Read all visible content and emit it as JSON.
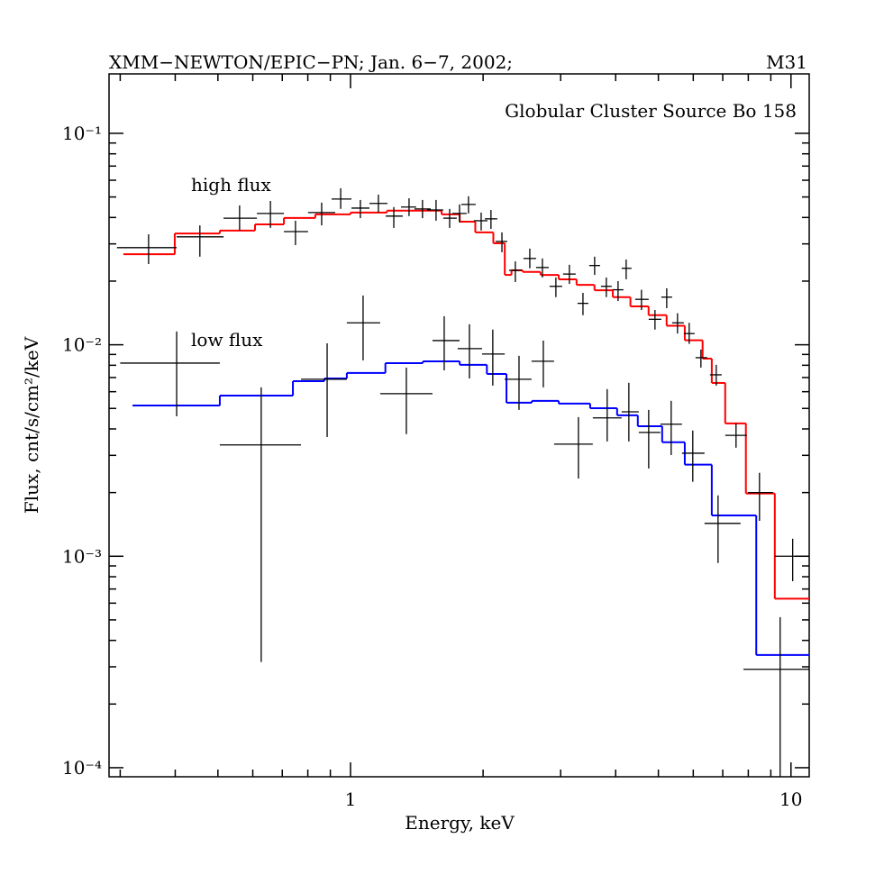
{
  "chart_data": {
    "type": "step",
    "title": "XMM−NEWTON/EPIC−PN; Jan. 6−7, 2002;",
    "title_right": "M31",
    "subtitle": "Globular Cluster Source Bo 158",
    "xlabel": "Energy, keV",
    "ylabel": "Flux, cnt/s/cm²/keV",
    "xlog": true,
    "ylog": true,
    "xlim": [
      0.283,
      11.0
    ],
    "ylim": [
      9.06e-05,
      0.191
    ],
    "xticks": [
      1,
      10
    ],
    "xminorticks": [
      0.3,
      0.4,
      0.5,
      0.6,
      0.7,
      0.8,
      0.9,
      2,
      3,
      4,
      5,
      6,
      7,
      8,
      9
    ],
    "yticks": [
      {
        "value": 0.0001,
        "label": "10⁻⁴"
      },
      {
        "value": 0.001,
        "label": "10⁻³"
      },
      {
        "value": 0.01,
        "label": "10⁻²"
      },
      {
        "value": 0.1,
        "label": "10⁻¹"
      }
    ],
    "yminorticks": [
      0.0002,
      0.0003,
      0.0004,
      0.0005,
      0.0006,
      0.0007,
      0.0008,
      0.0009,
      0.002,
      0.003,
      0.004,
      0.005,
      0.006,
      0.007,
      0.008,
      0.009,
      0.02,
      0.03,
      0.04,
      0.05,
      0.06,
      0.07,
      0.08,
      0.09
    ],
    "models": [
      {
        "color": "#ff0000",
        "edges": [
          0.305,
          0.399,
          0.505,
          0.607,
          0.706,
          0.832,
          1.0,
          1.21,
          1.46,
          1.61,
          1.77,
          1.92,
          2.11,
          2.24,
          2.32,
          2.46,
          2.7,
          2.97,
          3.26,
          3.58,
          3.94,
          4.32,
          4.75,
          5.22,
          5.74,
          6.3,
          6.61,
          7.09,
          7.9,
          9.19,
          11.0
        ],
        "values": [
          0.0268,
          0.0336,
          0.0347,
          0.0371,
          0.0398,
          0.0414,
          0.0422,
          0.0431,
          0.0431,
          0.0414,
          0.0382,
          0.034,
          0.0302,
          0.0214,
          0.0225,
          0.0221,
          0.0214,
          0.0204,
          0.0192,
          0.0181,
          0.0168,
          0.0152,
          0.0138,
          0.0123,
          0.0105,
          0.0086,
          0.0066,
          0.00425,
          0.00198,
          0.00063
        ]
      },
      {
        "color": "#0000ff",
        "edges": [
          0.32,
          0.505,
          0.74,
          0.872,
          0.981,
          1.2,
          1.46,
          1.77,
          2.04,
          2.26,
          2.58,
          2.97,
          3.5,
          4.03,
          4.49,
          5.1,
          5.74,
          6.61,
          8.34,
          11.0
        ],
        "values": [
          0.00516,
          0.00575,
          0.00673,
          0.00693,
          0.00736,
          0.00819,
          0.00835,
          0.00804,
          0.00728,
          0.00532,
          0.00543,
          0.00527,
          0.00501,
          0.00464,
          0.00412,
          0.00346,
          0.00271,
          0.00156,
          0.000341
        ]
      }
    ],
    "data": [
      {
        "name": "high flux",
        "color": "#000000",
        "x": [
          0.348,
          0.455,
          0.56,
          0.658,
          0.75,
          0.86,
          0.95,
          1.053,
          1.157,
          1.254,
          1.358,
          1.457,
          1.564,
          1.679,
          1.768,
          1.853,
          1.98,
          2.084,
          2.207,
          2.367,
          2.553,
          2.727,
          2.926,
          3.14,
          3.371,
          3.583,
          3.809,
          4.05,
          4.225,
          4.577,
          4.912,
          5.223,
          5.526,
          5.874,
          6.245,
          6.767,
          7.504,
          8.482,
          10.09
        ],
        "y": [
          0.0288,
          0.0324,
          0.0397,
          0.0418,
          0.0343,
          0.0422,
          0.0489,
          0.0443,
          0.0466,
          0.0406,
          0.0448,
          0.0439,
          0.0434,
          0.0397,
          0.0418,
          0.0461,
          0.0386,
          0.0394,
          0.0308,
          0.0225,
          0.0256,
          0.0232,
          0.0189,
          0.0216,
          0.0157,
          0.0237,
          0.0189,
          0.0182,
          0.023,
          0.0164,
          0.0132,
          0.0168,
          0.0127,
          0.0113,
          0.00869,
          0.00721,
          0.00373,
          0.002,
          0.001
        ],
        "xlo": [
          0.295,
          0.403,
          0.515,
          0.613,
          0.706,
          0.801,
          0.906,
          1.005,
          1.104,
          1.202,
          1.302,
          1.397,
          1.492,
          1.624,
          1.703,
          1.785,
          1.906,
          2.018,
          2.134,
          2.291,
          2.47,
          2.638,
          2.831,
          3.038,
          3.277,
          3.483,
          3.703,
          3.937,
          4.126,
          4.429,
          4.753,
          5.077,
          5.373,
          5.711,
          6.071,
          6.546,
          7.092,
          7.977,
          9.189
        ],
        "xhi": [
          0.403,
          0.515,
          0.613,
          0.706,
          0.801,
          0.923,
          1.005,
          1.104,
          1.213,
          1.314,
          1.41,
          1.521,
          1.624,
          1.743,
          1.835,
          1.924,
          2.046,
          2.154,
          2.269,
          2.447,
          2.638,
          2.818,
          3.024,
          3.245,
          3.467,
          3.686,
          3.917,
          4.165,
          4.345,
          4.753,
          5.077,
          5.373,
          5.711,
          6.042,
          6.454,
          6.96,
          7.94,
          9.103,
          11.0
        ],
        "ylo": [
          0.0241,
          0.0261,
          0.0347,
          0.0357,
          0.0296,
          0.0367,
          0.0439,
          0.0397,
          0.0422,
          0.0357,
          0.0406,
          0.0397,
          0.0386,
          0.0357,
          0.0379,
          0.0418,
          0.0347,
          0.0353,
          0.0274,
          0.0198,
          0.023,
          0.0208,
          0.0168,
          0.0194,
          0.0138,
          0.0214,
          0.0168,
          0.0161,
          0.0204,
          0.0146,
          0.0118,
          0.0149,
          0.0113,
          0.0101,
          0.0078,
          0.00641,
          0.00326,
          0.00147,
          0.000762
        ],
        "yhi": [
          0.0333,
          0.0367,
          0.0456,
          0.0479,
          0.0386,
          0.047,
          0.055,
          0.0484,
          0.0513,
          0.0448,
          0.0493,
          0.0484,
          0.0484,
          0.0439,
          0.0461,
          0.0504,
          0.0422,
          0.0434,
          0.034,
          0.0248,
          0.0285,
          0.0256,
          0.0208,
          0.0239,
          0.0176,
          0.0261,
          0.0208,
          0.02,
          0.0253,
          0.0182,
          0.0146,
          0.0185,
          0.0141,
          0.0127,
          0.00949,
          0.00804,
          0.00425,
          0.00248,
          0.00121
        ]
      },
      {
        "name": "low flux",
        "color": "#000000",
        "x": [
          0.403,
          0.627,
          0.885,
          1.068,
          1.339,
          1.632,
          1.862,
          2.104,
          2.413,
          2.74,
          3.292,
          3.826,
          4.285,
          4.753,
          5.346,
          5.985,
          6.831,
          9.45
        ],
        "y": [
          0.00819,
          0.00336,
          0.00687,
          0.0127,
          0.00587,
          0.01047,
          0.00959,
          0.00904,
          0.00687,
          0.00836,
          0.00339,
          0.00451,
          0.00482,
          0.00385,
          0.00421,
          0.00307,
          0.00143,
          0.000292
        ],
        "xlo": [
          0.3,
          0.505,
          0.772,
          0.981,
          1.168,
          1.535,
          1.751,
          1.989,
          2.239,
          2.576,
          2.899,
          3.549,
          4.126,
          4.513,
          5.053,
          5.656,
          6.364,
          7.8
        ],
        "xhi": [
          0.505,
          0.772,
          0.981,
          1.168,
          1.535,
          1.768,
          1.989,
          2.239,
          2.576,
          2.899,
          3.549,
          4.126,
          4.513,
          5.053,
          5.656,
          6.364,
          7.683,
          11.0
        ],
        "ylo": [
          0.00459,
          0.000316,
          0.00366,
          0.00844,
          0.00378,
          0.00757,
          0.00693,
          0.00641,
          0.00492,
          0.00629,
          0.00233,
          0.00349,
          0.00349,
          0.0026,
          0.00301,
          0.00225,
          0.000929,
          9e-05
        ],
        "yhi": [
          0.01156,
          0.00629,
          0.01016,
          0.0171,
          0.0078,
          0.01365,
          0.0125,
          0.0118,
          0.00887,
          0.01047,
          0.00455,
          0.00617,
          0.00661,
          0.00492,
          0.00543,
          0.00393,
          0.00194,
          0.000515
        ]
      }
    ]
  }
}
